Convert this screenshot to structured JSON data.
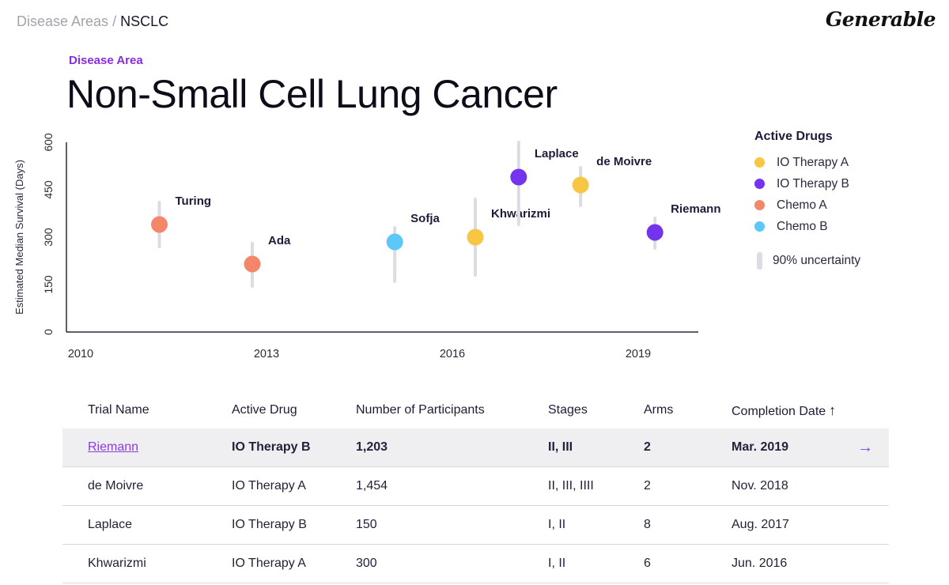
{
  "breadcrumb": {
    "parent": "Disease Areas",
    "separator": "/",
    "current": "NSCLC"
  },
  "brand": {
    "logo_text": "Generable"
  },
  "header": {
    "eyebrow": "Disease Area",
    "title": "Non-Small Cell Lung Cancer"
  },
  "legend": {
    "title": "Active Drugs",
    "items": [
      {
        "label": "IO Therapy A",
        "color": "#f7c743"
      },
      {
        "label": "IO Therapy B",
        "color": "#7434ee"
      },
      {
        "label": "Chemo A",
        "color": "#f4876a"
      },
      {
        "label": "Chemo B",
        "color": "#5cc8f7"
      }
    ],
    "uncertainty_label": "90% uncertainty"
  },
  "chart_data": {
    "type": "scatter",
    "title": "",
    "xlabel": "",
    "ylabel": "Estimated Median Survival (Days)",
    "xlim": [
      2010,
      2020.2
    ],
    "ylim": [
      0,
      600
    ],
    "x_ticks": [
      "2010",
      "2013",
      "2016",
      "2019"
    ],
    "y_ticks": [
      "0",
      "150",
      "300",
      "450",
      "600"
    ],
    "points": [
      {
        "name": "Turing",
        "x": 2011.5,
        "y": 340,
        "low": 270,
        "high": 410,
        "drug": "Chemo A",
        "color": "#f4876a"
      },
      {
        "name": "Ada",
        "x": 2013.0,
        "y": 215,
        "low": 145,
        "high": 280,
        "drug": "Chemo A",
        "color": "#f4876a"
      },
      {
        "name": "Sofja",
        "x": 2015.3,
        "y": 285,
        "low": 160,
        "high": 330,
        "drug": "Chemo B",
        "color": "#5cc8f7"
      },
      {
        "name": "Khwarizmi",
        "x": 2016.6,
        "y": 300,
        "low": 180,
        "high": 420,
        "drug": "IO Therapy A",
        "color": "#f7c743"
      },
      {
        "name": "Laplace",
        "x": 2017.3,
        "y": 490,
        "low": 340,
        "high": 600,
        "drug": "IO Therapy B",
        "color": "#7434ee"
      },
      {
        "name": "de Moivre",
        "x": 2018.3,
        "y": 465,
        "low": 400,
        "high": 520,
        "drug": "IO Therapy A",
        "color": "#f7c743"
      },
      {
        "name": "Riemann",
        "x": 2019.5,
        "y": 315,
        "low": 265,
        "high": 360,
        "drug": "IO Therapy B",
        "color": "#7434ee"
      }
    ]
  },
  "table": {
    "columns": [
      "Trial Name",
      "Active Drug",
      "Number of Participants",
      "Stages",
      "Arms",
      "Completion Date"
    ],
    "sort_icon": "arrow-up-icon",
    "rows": [
      {
        "name": "Riemann",
        "drug": "IO Therapy B",
        "participants": "1,203",
        "stages": "II, III",
        "arms": "2",
        "completion": "Mar. 2019",
        "arrow": "→"
      },
      {
        "name": "de Moivre",
        "drug": "IO Therapy A",
        "participants": "1,454",
        "stages": "II, III, IIII",
        "arms": "2",
        "completion": "Nov. 2018"
      },
      {
        "name": "Laplace",
        "drug": "IO Therapy B",
        "participants": "150",
        "stages": "I, II",
        "arms": "8",
        "completion": "Aug. 2017"
      },
      {
        "name": "Khwarizmi",
        "drug": "IO Therapy A",
        "participants": "300",
        "stages": "I, II",
        "arms": "6",
        "completion": "Jun. 2016"
      }
    ]
  }
}
